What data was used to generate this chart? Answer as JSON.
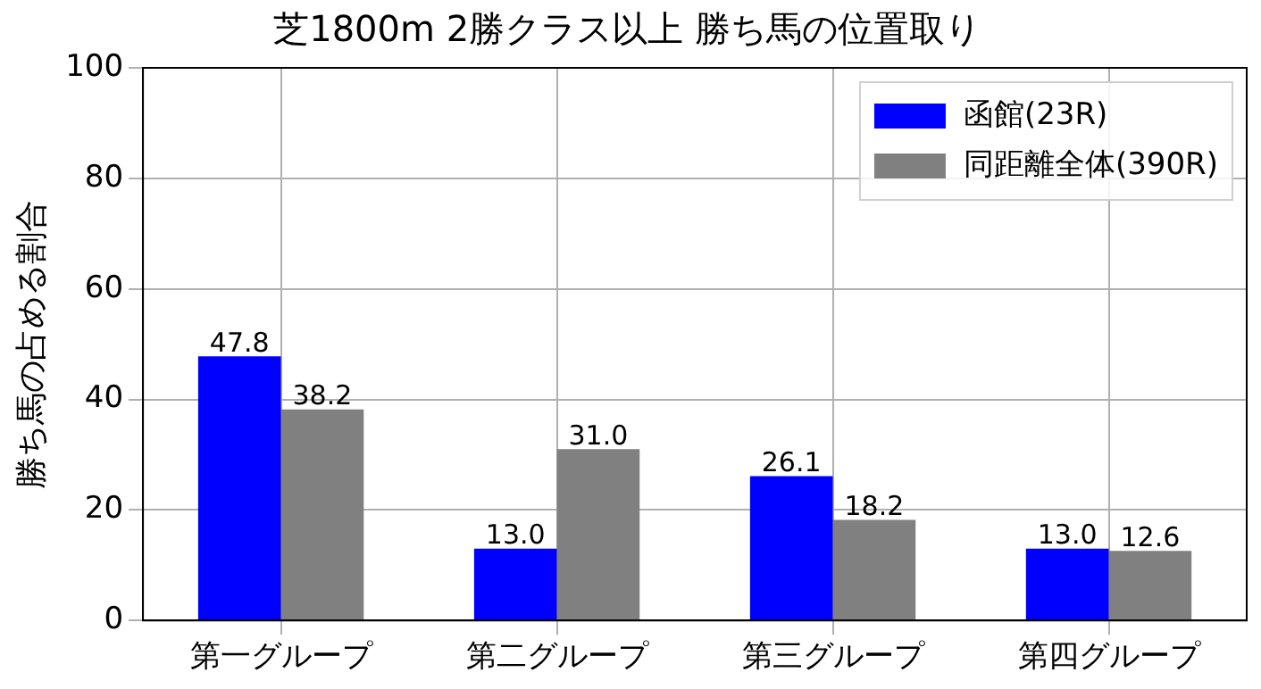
{
  "chart_data": {
    "type": "bar",
    "title": "芝1800m 2勝クラス以上 勝ち馬の位置取り",
    "ylabel": "勝ち馬の占める割合",
    "categories": [
      "第一グループ",
      "第二グループ",
      "第三グループ",
      "第四グループ"
    ],
    "series": [
      {
        "name": "函館(23R)",
        "color": "#0000ff",
        "values": [
          47.8,
          13.0,
          26.1,
          13.0
        ],
        "value_labels": [
          "47.8",
          "13.0",
          "26.1",
          "13.0"
        ]
      },
      {
        "name": "同距離全体(390R)",
        "color": "#808080",
        "values": [
          38.2,
          31.0,
          18.2,
          12.6
        ],
        "value_labels": [
          "38.2",
          "31.0",
          "18.2",
          "12.6"
        ]
      }
    ],
    "ylim": [
      0,
      100
    ],
    "yticks": [
      0,
      20,
      40,
      60,
      80,
      100
    ],
    "grid": true,
    "legend": "top right"
  }
}
